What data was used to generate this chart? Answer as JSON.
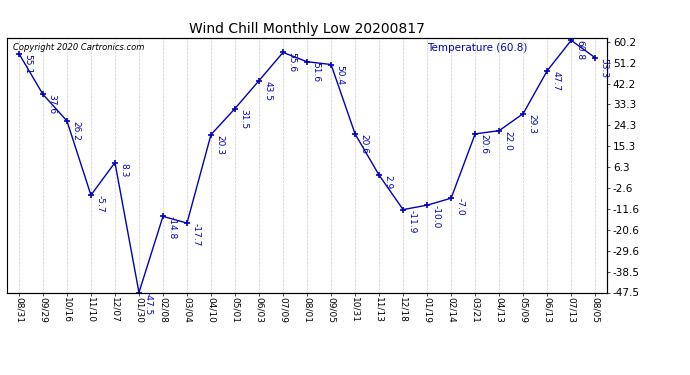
{
  "title": "Wind Chill Monthly Low 20200817",
  "copyright": "Copyright 2020 Cartronics.com",
  "legend_label": "Temperature (60.8)",
  "line_color": "#0000bb",
  "background_color": "#ffffff",
  "grid_color": "#cccccc",
  "dates": [
    "08/31",
    "09/29",
    "10/16",
    "11/10",
    "12/07",
    "01/30",
    "02/08",
    "03/04",
    "04/10",
    "05/01",
    "06/03",
    "07/09",
    "08/01",
    "09/05",
    "10/31",
    "11/13",
    "12/18",
    "01/19",
    "02/14",
    "03/21",
    "04/13",
    "05/09",
    "06/13",
    "07/13",
    "08/05"
  ],
  "values": [
    55.1,
    37.6,
    26.2,
    -5.7,
    8.3,
    -47.5,
    -14.8,
    -17.7,
    20.3,
    31.5,
    43.5,
    55.6,
    51.6,
    50.4,
    20.6,
    2.9,
    -11.9,
    -10.0,
    -7.0,
    20.6,
    22.0,
    29.3,
    47.7,
    60.8,
    53.3
  ],
  "ylim_min": -47.5,
  "ylim_max": 62.0,
  "yticks": [
    60.2,
    51.2,
    42.2,
    33.3,
    24.3,
    15.3,
    6.3,
    -2.6,
    -11.6,
    -20.6,
    -29.6,
    -38.5,
    -47.5
  ],
  "annotation_fontsize": 6.5,
  "xlabel_fontsize": 6.5,
  "ylabel_fontsize": 7.5,
  "title_fontsize": 10
}
